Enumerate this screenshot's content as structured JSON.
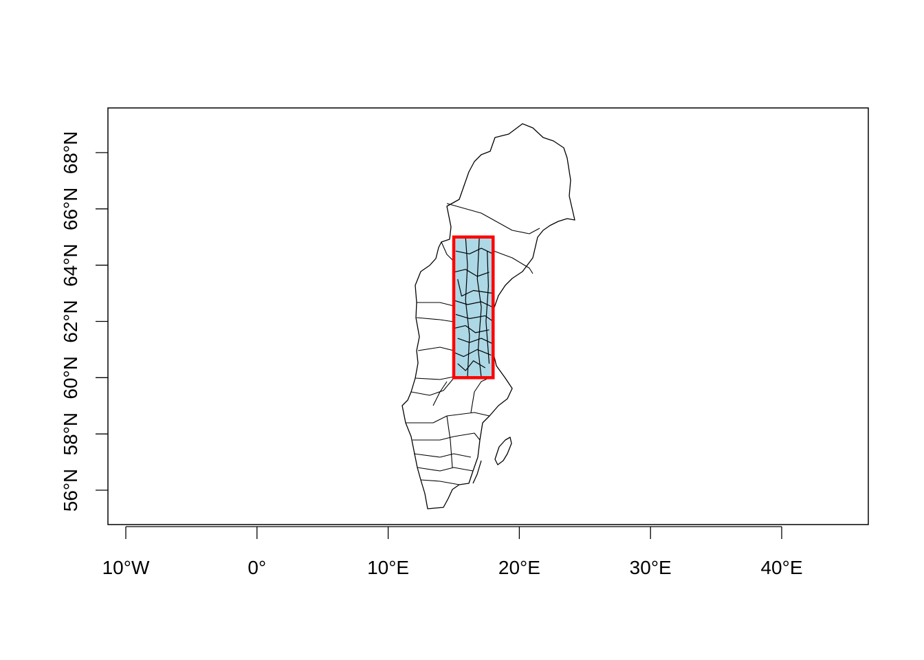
{
  "figure": {
    "projection": "longitude-latitude",
    "axis_ranges": {
      "lon": [
        -11.4,
        46.5
      ],
      "lat": [
        54.9,
        70.0
      ]
    },
    "x_axis": {
      "ticks": [
        {
          "value": -10,
          "label": "10°W"
        },
        {
          "value": 0,
          "label": "0°"
        },
        {
          "value": 10,
          "label": "10°E"
        },
        {
          "value": 20,
          "label": "20°E"
        },
        {
          "value": 30,
          "label": "30°E"
        },
        {
          "value": 40,
          "label": "40°E"
        }
      ]
    },
    "y_axis": {
      "ticks": [
        {
          "value": 56,
          "label": "56°N"
        },
        {
          "value": 58,
          "label": "58°N"
        },
        {
          "value": 60,
          "label": "60°N"
        },
        {
          "value": 62,
          "label": "62°N"
        },
        {
          "value": 64,
          "label": "64°N"
        },
        {
          "value": 66,
          "label": "66°N"
        },
        {
          "value": 68,
          "label": "68°N"
        }
      ]
    },
    "map": {
      "region": "Sweden",
      "content": "administrative boundaries outline",
      "stroke_color": "#000000"
    },
    "highlight_box": {
      "lon": [
        15,
        18
      ],
      "lat": [
        60,
        65
      ],
      "stroke_color": "#ff0000",
      "fill_color": "#add8e6",
      "content": "selected municipalities"
    }
  }
}
